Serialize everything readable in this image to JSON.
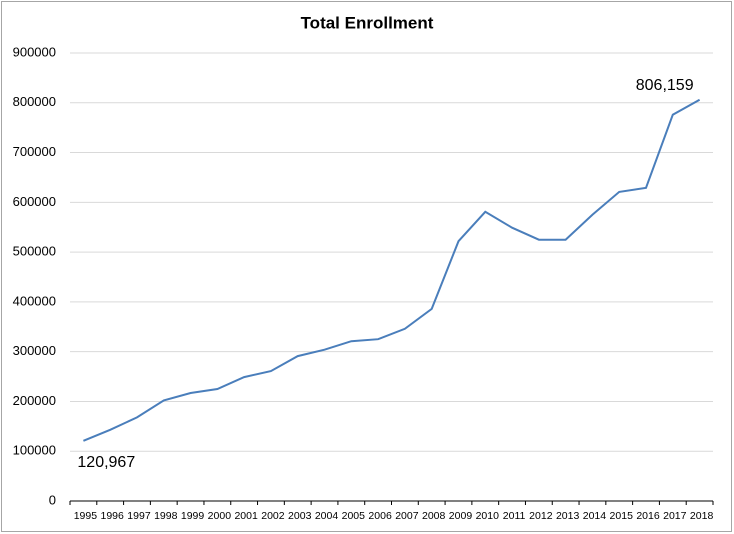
{
  "chart_data": {
    "type": "line",
    "title": "Total Enrollment",
    "categories": [
      "1995",
      "1996",
      "1997",
      "1998",
      "1999",
      "2000",
      "2001",
      "2002",
      "2003",
      "2004",
      "2005",
      "2006",
      "2007",
      "2008",
      "2009",
      "2010",
      "2011",
      "2012",
      "2013",
      "2014",
      "2015",
      "2016",
      "2017",
      "2018"
    ],
    "values": [
      120967,
      143000,
      168000,
      202000,
      217000,
      225000,
      249000,
      261000,
      291000,
      304000,
      321000,
      325000,
      346000,
      386000,
      522000,
      581000,
      549000,
      525000,
      525000,
      575000,
      621000,
      629000,
      776000,
      806159
    ],
    "value_labels": [
      "120,967",
      null,
      null,
      null,
      null,
      null,
      null,
      null,
      null,
      null,
      null,
      null,
      null,
      null,
      null,
      null,
      null,
      null,
      null,
      null,
      null,
      null,
      null,
      "806,159"
    ],
    "color": "#4a7ebb",
    "ylim": [
      0,
      900000
    ],
    "yticks": [
      0,
      100000,
      200000,
      300000,
      400000,
      500000,
      600000,
      700000,
      800000,
      900000
    ],
    "grid": true
  }
}
